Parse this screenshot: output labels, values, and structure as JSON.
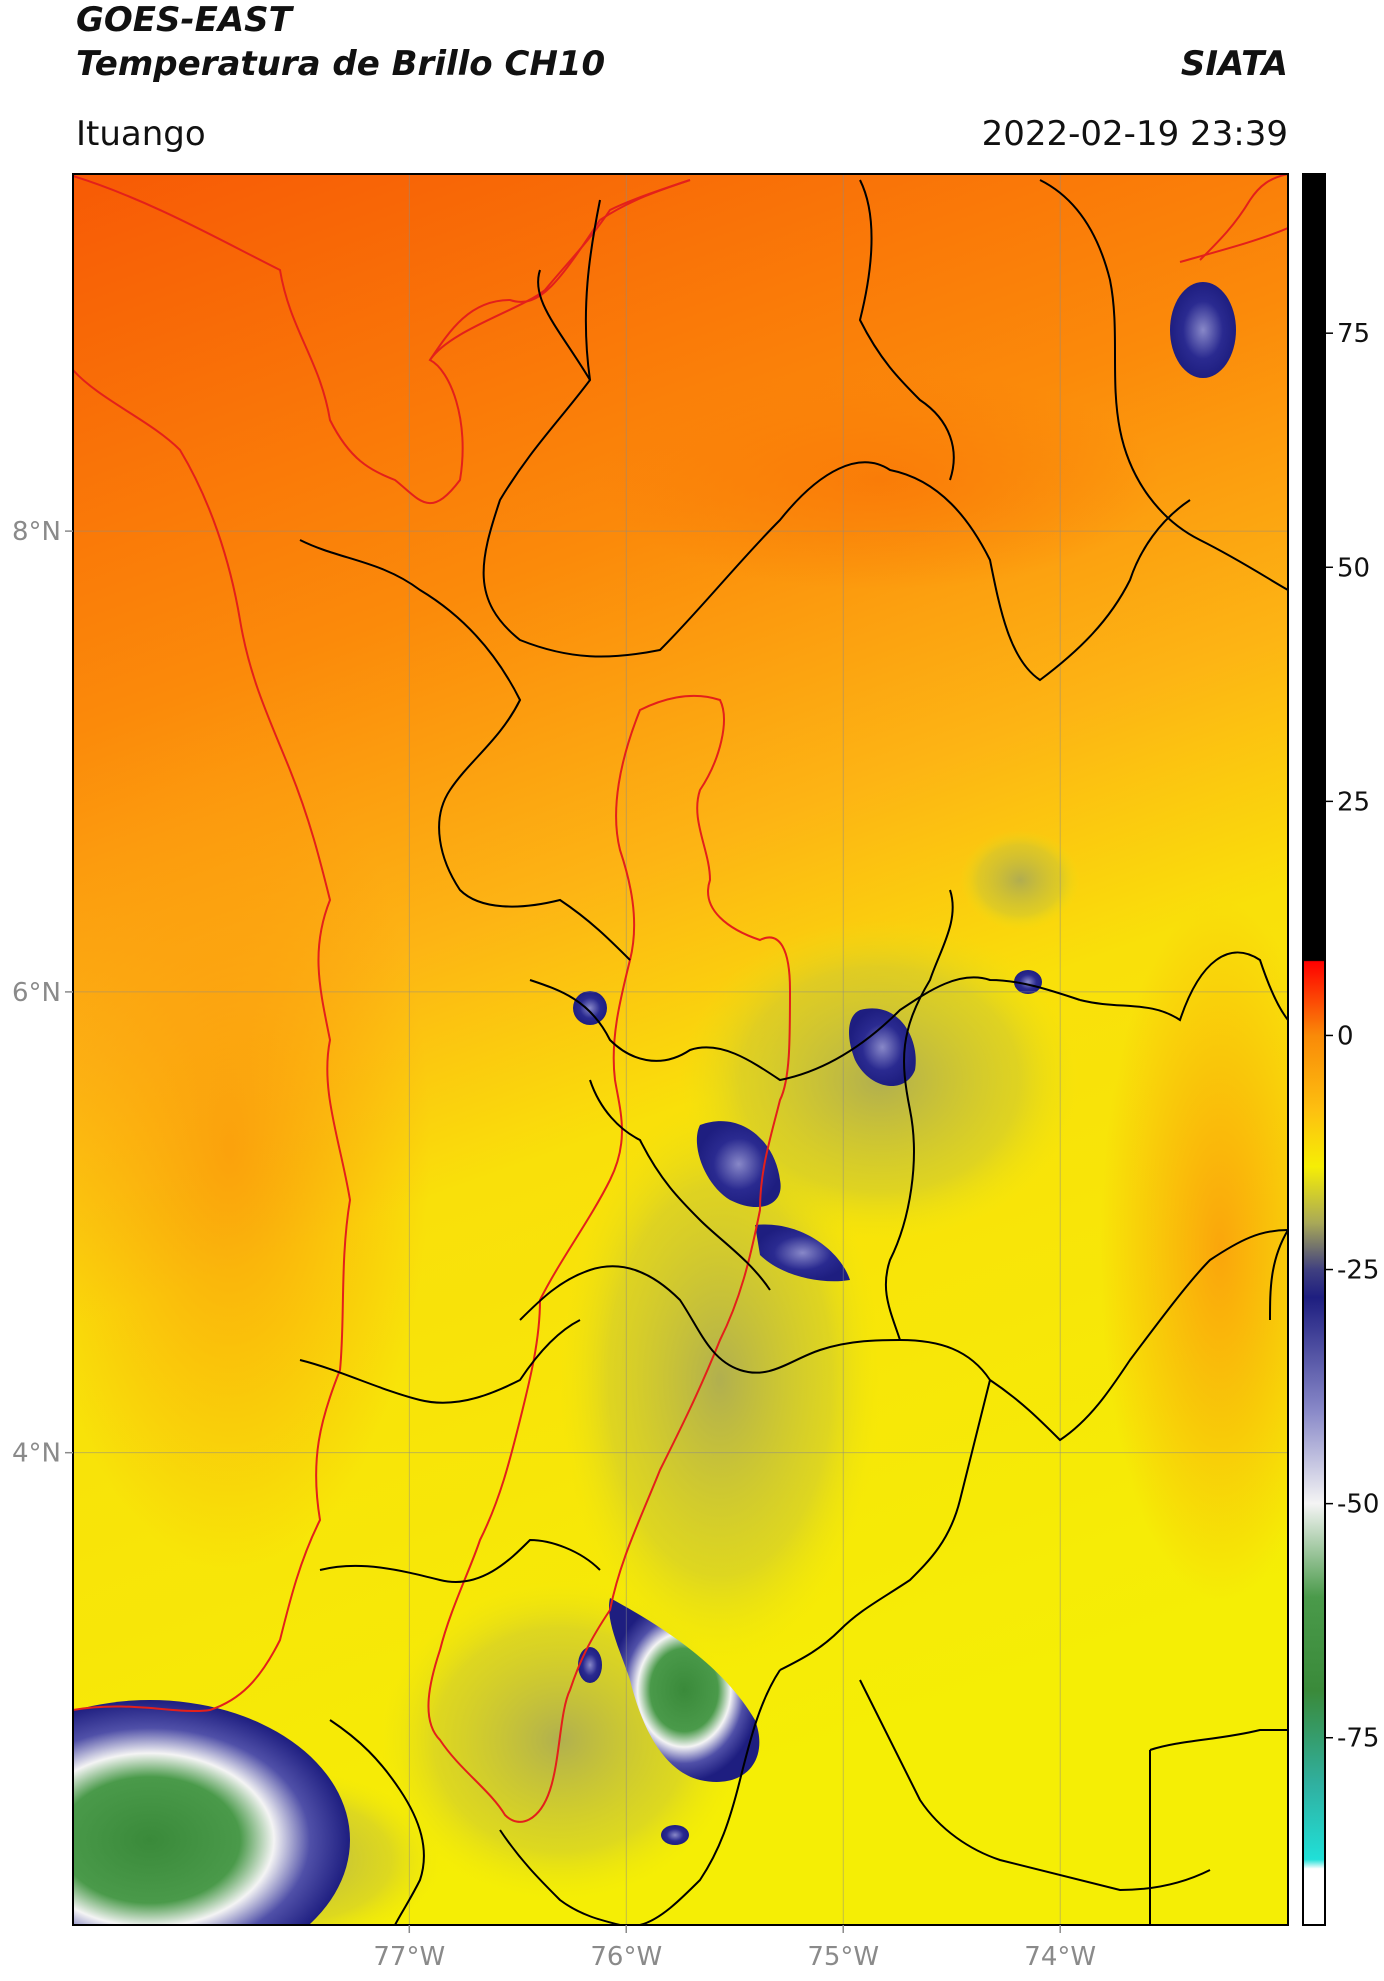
{
  "header": {
    "line1": "GOES-EAST",
    "line2": "Temperatura de Brillo CH10",
    "brand": "SIATA",
    "region": "Ituango",
    "timestamp": "2022-02-19 23:39"
  },
  "map": {
    "lon_range": [
      -78.55,
      -72.95
    ],
    "lat_range": [
      1.95,
      9.55
    ],
    "lon_ticks": [
      {
        "value": -77,
        "label": "77°W"
      },
      {
        "value": -76,
        "label": "76°W"
      },
      {
        "value": -75,
        "label": "75°W"
      },
      {
        "value": -74,
        "label": "74°W"
      }
    ],
    "lat_ticks": [
      {
        "value": 8,
        "label": "8°N"
      },
      {
        "value": 6,
        "label": "6°N"
      },
      {
        "value": 4,
        "label": "4°N"
      }
    ],
    "colors": {
      "warm": "#f96a06",
      "mid": "#fdb714",
      "cool": "#f4ef05",
      "cold_olive": "#9a9a56",
      "very_cold": "#20208a",
      "coldest_white": "#f0f0f0",
      "coldest_green": "#3a8a3a",
      "border_black": "#000000",
      "border_red": "#e3201b"
    }
  },
  "colorbar": {
    "ticks": [
      {
        "value": 75,
        "label": "75"
      },
      {
        "value": 50,
        "label": "50"
      },
      {
        "value": 25,
        "label": "25"
      },
      {
        "value": 0,
        "label": "0"
      },
      {
        "value": -25,
        "label": "-25"
      },
      {
        "value": -50,
        "label": "-50"
      },
      {
        "value": -75,
        "label": "-75"
      }
    ],
    "range": [
      -95,
      92
    ]
  }
}
